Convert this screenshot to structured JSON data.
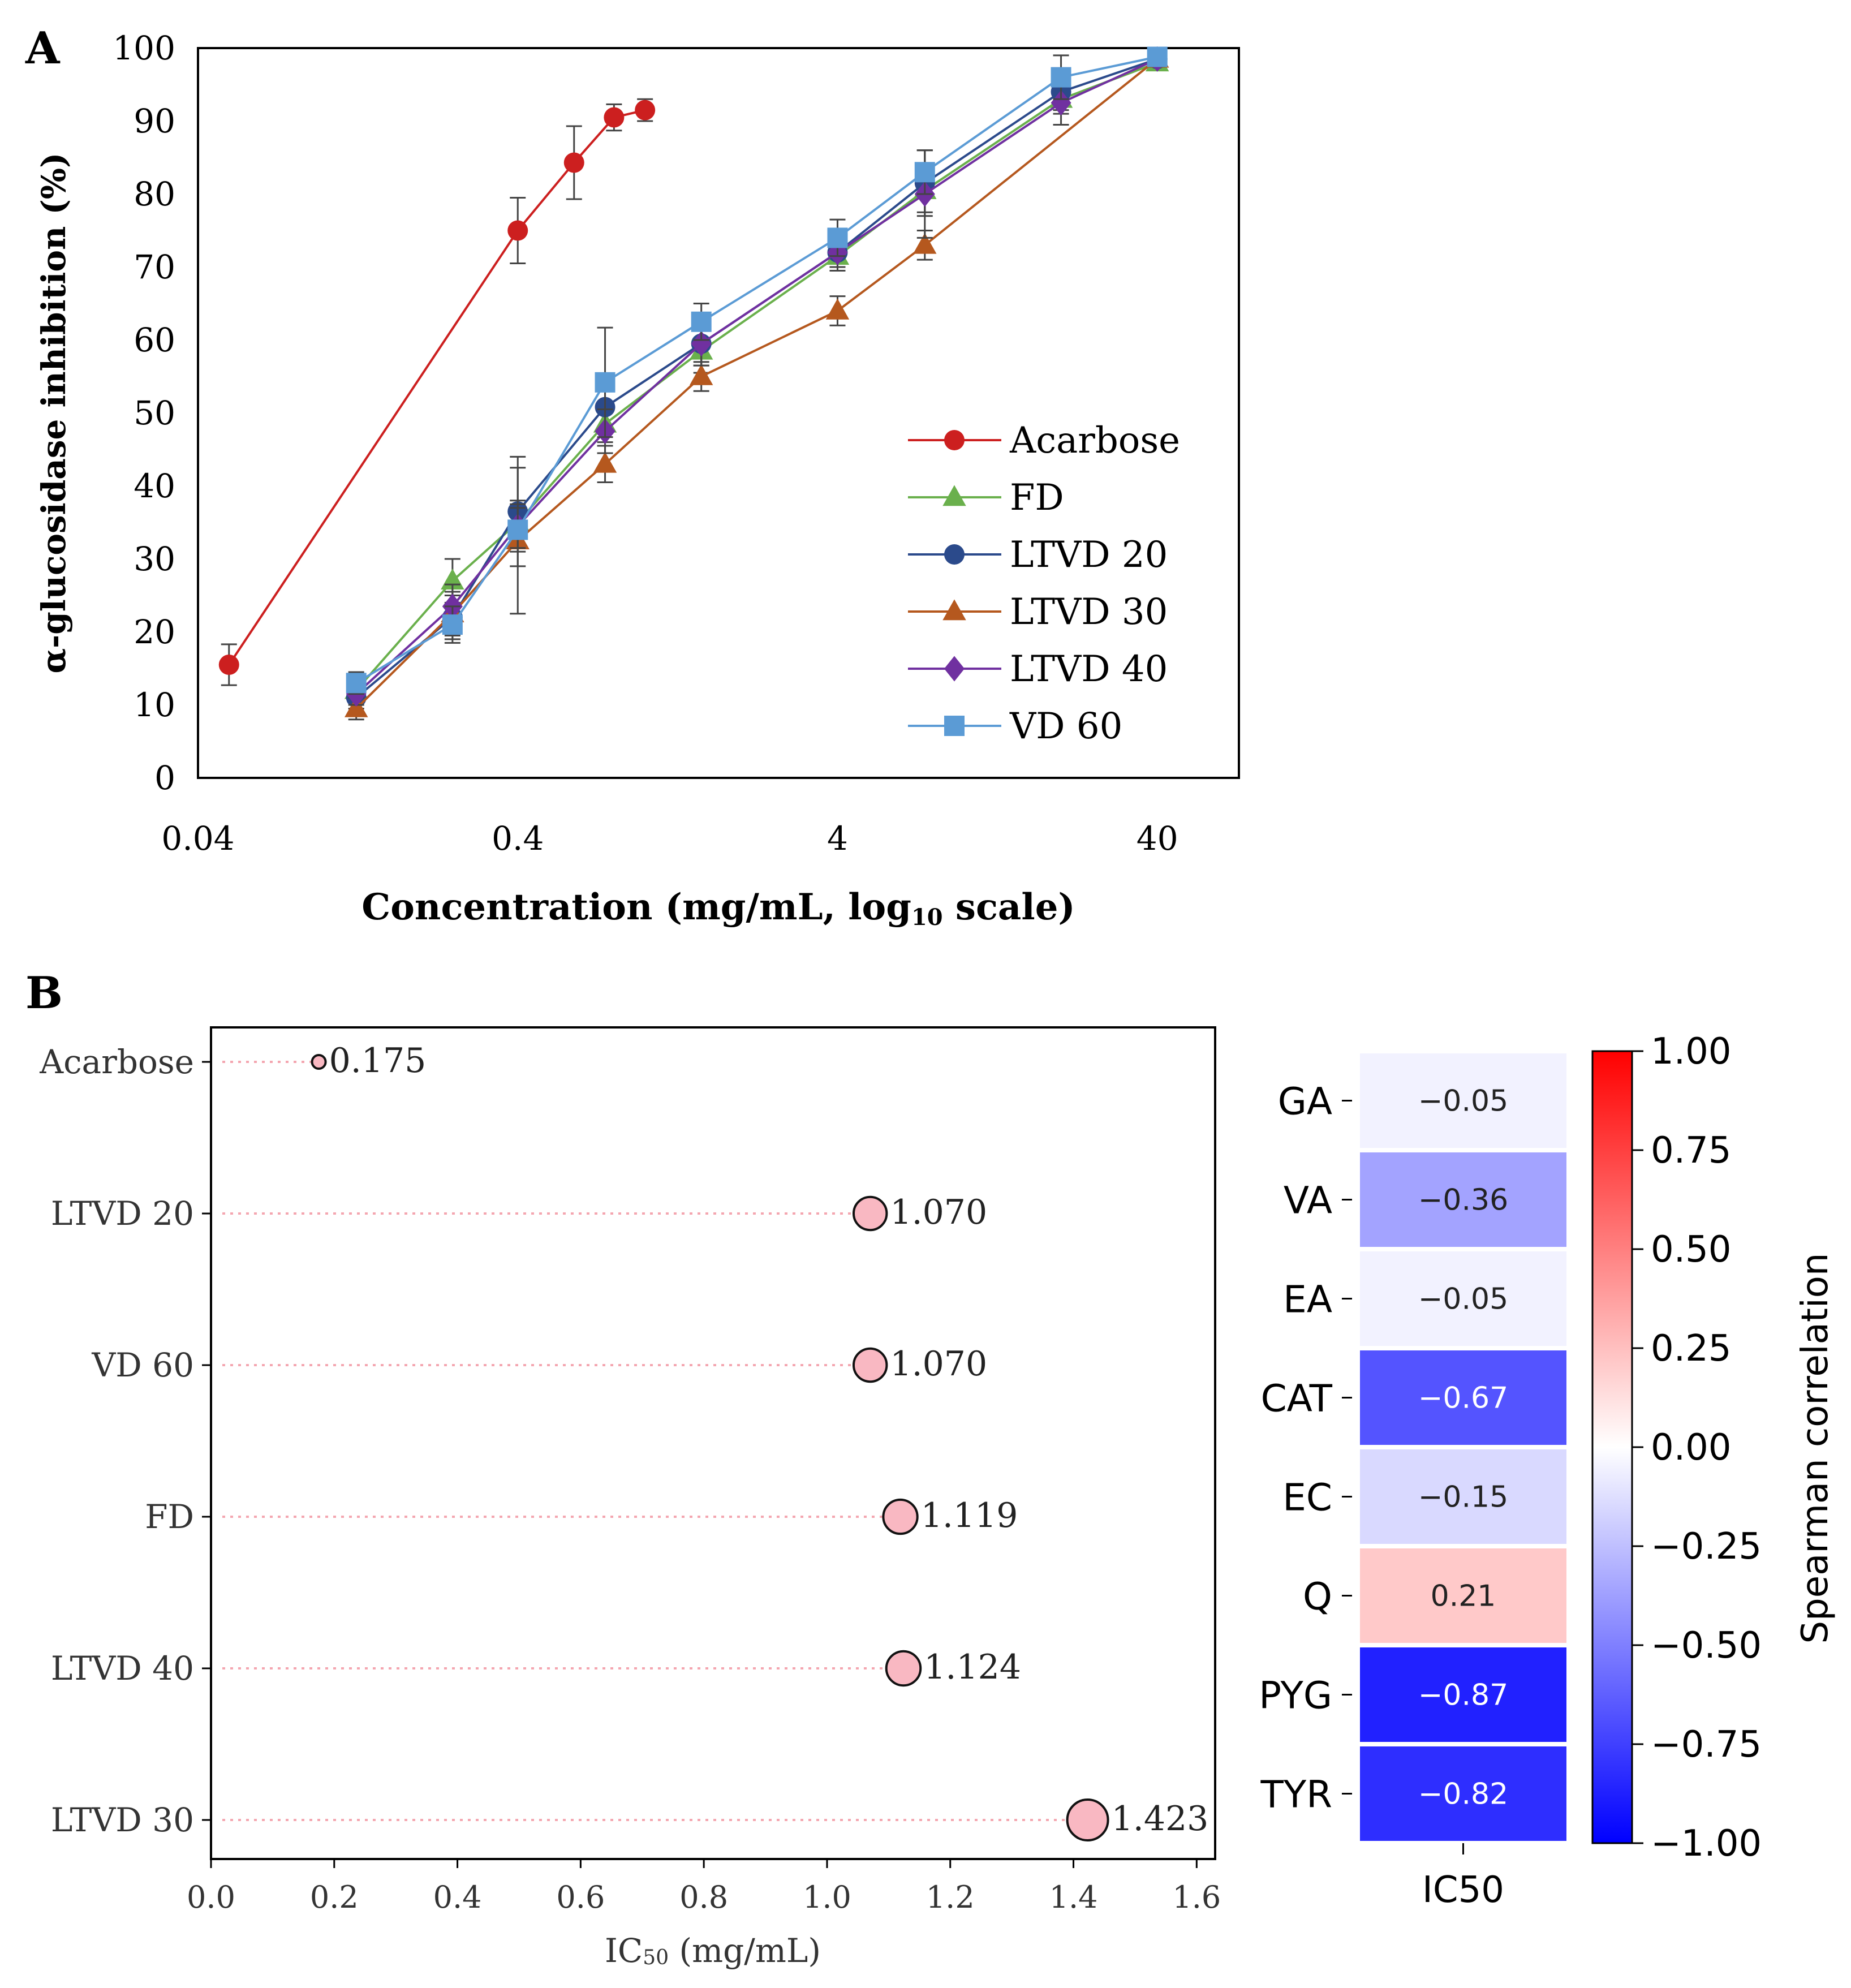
{
  "chart_data": [
    {
      "type": "line",
      "panel_label": "A",
      "xlabel": "Concentration (mg/mL, log",
      "xlabel_sub": "10",
      "xlabel_tail": " scale)",
      "ylabel": "α-glucosidase inhibition (%)",
      "x_scale": "log10",
      "xlim": [
        0.04,
        72
      ],
      "ylim": [
        0,
        100
      ],
      "x_ticks": [
        0.04,
        0.4,
        4,
        40
      ],
      "x_tick_labels": [
        "0.04",
        "0.4",
        "4",
        "40"
      ],
      "y_ticks": [
        0,
        10,
        20,
        30,
        40,
        50,
        60,
        70,
        80,
        90,
        100
      ],
      "y_tick_labels": [
        "0",
        "10",
        "20",
        "30",
        "40",
        "50",
        "60",
        "70",
        "80",
        "90",
        "100"
      ],
      "legend_position": "center-right",
      "series": [
        {
          "name": "Acarbose",
          "color": "#cc1f1f",
          "marker": "circle",
          "x": [
            0.05,
            0.4,
            0.6,
            0.8,
            1.0
          ],
          "y": [
            15.5,
            75.0,
            84.3,
            90.5,
            91.5
          ],
          "err": [
            2.8,
            4.5,
            5.0,
            1.8,
            1.5
          ]
        },
        {
          "name": "FD",
          "color": "#6ab04c",
          "marker": "triangle",
          "x": [
            0.125,
            0.25,
            0.4,
            0.75,
            1.5,
            4,
            7.5,
            20,
            40
          ],
          "y": [
            12.0,
            27.0,
            35.0,
            48.5,
            58.5,
            71.5,
            80.5,
            93.0,
            98.0
          ],
          "err": [
            1.5,
            3.0,
            3.0,
            2.5,
            3.0,
            2.0,
            3.0,
            2.0,
            1.0
          ]
        },
        {
          "name": "LTVD 20",
          "color": "#2b4a8b",
          "marker": "circle",
          "x": [
            0.125,
            0.25,
            0.4,
            0.75,
            1.5,
            4,
            7.5,
            20,
            40
          ],
          "y": [
            11.0,
            22.0,
            36.5,
            50.8,
            59.5,
            72.0,
            81.5,
            94.0,
            98.5
          ],
          "err": [
            1.5,
            3.0,
            7.5,
            3.0,
            3.0,
            2.0,
            4.5,
            2.5,
            1.0
          ]
        },
        {
          "name": "LTVD 30",
          "color": "#b5581e",
          "marker": "triangle",
          "x": [
            0.125,
            0.25,
            0.4,
            0.75,
            1.5,
            4,
            7.5,
            40
          ],
          "y": [
            9.5,
            22.5,
            32.5,
            43.0,
            55.0,
            64.0,
            73.0,
            98.5
          ],
          "err": [
            1.5,
            3.0,
            10.0,
            2.5,
            2.0,
            2.0,
            2.0,
            1.0
          ]
        },
        {
          "name": "LTVD 40",
          "color": "#7030a0",
          "marker": "diamond",
          "x": [
            0.125,
            0.25,
            0.4,
            0.75,
            1.5,
            4,
            7.5,
            20,
            40
          ],
          "y": [
            11.5,
            23.5,
            34.5,
            47.5,
            59.5,
            72.0,
            80.0,
            92.5,
            98.5
          ],
          "err": [
            1.5,
            3.0,
            3.0,
            3.0,
            3.0,
            2.0,
            6.0,
            3.0,
            1.0
          ]
        },
        {
          "name": "VD 60",
          "color": "#5b9bd5",
          "marker": "square",
          "x": [
            0.125,
            0.25,
            0.4,
            0.75,
            1.5,
            4,
            7.5,
            20,
            40
          ],
          "y": [
            13.0,
            21.0,
            34.0,
            54.2,
            62.5,
            74.0,
            83.0,
            96.0,
            98.8
          ],
          "err": [
            1.5,
            2.5,
            3.0,
            7.5,
            2.5,
            2.5,
            3.0,
            3.0,
            1.0
          ]
        }
      ]
    },
    {
      "type": "scatter",
      "panel_label": "B",
      "xlabel": "IC",
      "xlabel_sub": "50",
      "xlabel_tail": " (mg/mL)",
      "xlim": [
        0,
        1.63
      ],
      "x_ticks": [
        0.0,
        0.2,
        0.4,
        0.6,
        0.8,
        1.0,
        1.2,
        1.4,
        1.6
      ],
      "x_tick_labels": [
        "0.0",
        "0.2",
        "0.4",
        "0.6",
        "0.8",
        "1.0",
        "1.2",
        "1.4",
        "1.6"
      ],
      "marker_color": "#f9b8c2",
      "line_color": "#f4a6b0",
      "categories": [
        "Acarbose",
        "LTVD 20",
        "VD 60",
        "FD",
        "LTVD 40",
        "LTVD 30"
      ],
      "values": [
        0.175,
        1.07,
        1.07,
        1.119,
        1.124,
        1.423
      ],
      "value_labels": [
        "0.175",
        "1.070",
        "1.070",
        "1.119",
        "1.124",
        "1.423"
      ]
    },
    {
      "type": "heatmap",
      "rows": [
        "GA",
        "VA",
        "EA",
        "CAT",
        "EC",
        "Q",
        "PYG",
        "TYR"
      ],
      "columns": [
        "IC50"
      ],
      "values": [
        -0.05,
        -0.36,
        -0.05,
        -0.67,
        -0.15,
        0.21,
        -0.87,
        -0.82
      ],
      "value_labels": [
        "−0.05",
        "−0.36",
        "−0.05",
        "−0.67",
        "−0.15",
        "0.21",
        "−0.87",
        "−0.82"
      ],
      "colorbar_label": "Spearman correlation",
      "colorbar_range": [
        -1.0,
        1.0
      ],
      "colorbar_ticks": [
        1.0,
        0.75,
        0.5,
        0.25,
        0.0,
        -0.25,
        -0.5,
        -0.75,
        -1.0
      ],
      "colorbar_tick_labels": [
        "1.00",
        "0.75",
        "0.50",
        "0.25",
        "0.00",
        "−0.25",
        "−0.50",
        "−0.75",
        "−1.00"
      ],
      "colormap": "bwr"
    }
  ]
}
